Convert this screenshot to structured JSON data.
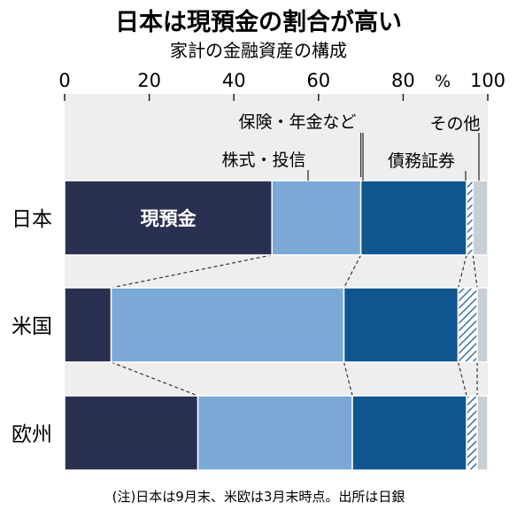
{
  "title": "日本は現預金の割合が高い",
  "subtitle": "家計の金融資産の構成",
  "unit": "%",
  "note": "(注)日本は9月末、米欧は3月末時点。出所は日銀",
  "colors": {
    "cash": "#2a3150",
    "stocks": "#7aa9d6",
    "insurance": "#0f5690",
    "bonds_hatch": "#3b6fa6",
    "other": "#c9ced4",
    "background": "#eeeeee"
  },
  "chart_data": {
    "type": "bar",
    "orientation": "horizontal",
    "stacked": true,
    "title": "日本は現預金の割合が高い",
    "subtitle": "家計の金融資産の構成",
    "categories": [
      "日本",
      "米国",
      "欧州"
    ],
    "xlim": [
      0,
      100
    ],
    "xticks": [
      "0",
      "20",
      "40",
      "60",
      "80",
      "100"
    ],
    "xunit": "%",
    "series": [
      {
        "name": "現預金",
        "values": [
          49,
          11,
          31.5
        ],
        "color": "#2a3150"
      },
      {
        "name": "株式・投信",
        "values": [
          21,
          55,
          36.5
        ],
        "color": "#7aa9d6"
      },
      {
        "name": "保険・年金など",
        "values": [
          25,
          27,
          27
        ],
        "color": "#0f5690"
      },
      {
        "name": "債務証券",
        "values": [
          1.5,
          4.5,
          2.5
        ],
        "color": "#3b6fa6",
        "pattern": "hatch"
      },
      {
        "name": "その他",
        "values": [
          3.5,
          2.5,
          2.5
        ],
        "color": "#c9ced4"
      }
    ],
    "inbar_label": {
      "series": "現預金",
      "category": "日本",
      "text": "現預金"
    },
    "legend": "callout-labels-top"
  }
}
